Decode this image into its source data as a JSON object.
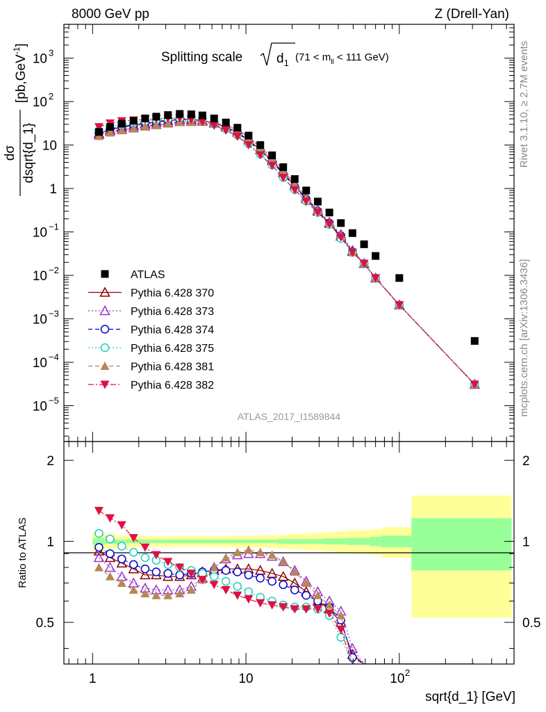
{
  "header": {
    "left": "8000 GeV pp",
    "right": "Z (Drell-Yan)"
  },
  "side_text": {
    "rivet": "Rivet 3.1.10, ≥ 2.7M events",
    "mcplots": "mcplots.cern.ch [arXiv:1306.3436]"
  },
  "colors": {
    "ATLAS": "#000000",
    "p370": "#8b0000",
    "p373": "#9933cc",
    "p374": "#0000cc",
    "p375": "#22ccbb",
    "p381": "#b8865a",
    "p382": "#dd1144",
    "band_stat": "#99ff99",
    "band_total": "#ffff99"
  },
  "chart_data": [
    {
      "type": "scatter",
      "panel": "main",
      "title_prefix": "Splitting scale",
      "title_sym": "d",
      "title_sub": "1",
      "title_range": "(71 < m",
      "title_range_sub": "ll",
      "title_range_end": " < 111 GeV)",
      "ylabel_num": "dσ",
      "ylabel_den": "dsqrt{d_1}",
      "ylabel_units": "[pb,GeV",
      "ylabel_units_sup": "-1",
      "ylabel_units_end": "]",
      "x_scale": "log",
      "y_scale": "log",
      "xlim": [
        0.65,
        560
      ],
      "ylim": [
        1.5e-06,
        6000
      ],
      "y_ticks": [
        {
          "v": 1e-05,
          "base": "10",
          "exp": "−5"
        },
        {
          "v": 0.0001,
          "base": "10",
          "exp": "−4"
        },
        {
          "v": 0.001,
          "base": "10",
          "exp": "−3"
        },
        {
          "v": 0.01,
          "base": "10",
          "exp": "−2"
        },
        {
          "v": 0.1,
          "base": "10",
          "exp": "−1"
        },
        {
          "v": 1,
          "base": "1",
          "exp": ""
        },
        {
          "v": 10,
          "base": "10",
          "exp": ""
        },
        {
          "v": 100,
          "base": "10",
          "exp": "2"
        },
        {
          "v": 1000,
          "base": "10",
          "exp": "3"
        }
      ],
      "legend_position": "left",
      "watermark": "ATLAS_2017_I1589844",
      "x": [
        1.1,
        1.3,
        1.55,
        1.85,
        2.2,
        2.6,
        3.1,
        3.7,
        4.4,
        5.2,
        6.2,
        7.4,
        8.8,
        10.4,
        12.4,
        14.8,
        17.5,
        20.8,
        24.7,
        29.4,
        35.0,
        41.6,
        49.5,
        58.9,
        70.0,
        100.0,
        310.0
      ],
      "series": [
        {
          "name": "ATLAS",
          "key": "ATLAS",
          "marker": "square-filled",
          "line": "none",
          "values": [
            20,
            26,
            31,
            36,
            41,
            45,
            49,
            52,
            51,
            48,
            41,
            33,
            25,
            16.5,
            10,
            5.8,
            3.1,
            1.65,
            0.9,
            0.5,
            0.28,
            0.16,
            0.094,
            0.052,
            0.028,
            0.0087,
            0.00031
          ]
        }
      ]
    },
    {
      "type": "line",
      "panel": "ratio",
      "ylabel": "Ratio to ATLAS",
      "x_scale": "log",
      "xlabel": "sqrt{d_1} [GeV]",
      "xlim": [
        0.65,
        560
      ],
      "ylim": [
        0.35,
        2.35
      ],
      "y_ticks": [
        0.5,
        1,
        2
      ],
      "x_ticks": [
        {
          "v": 1,
          "base": "1",
          "exp": ""
        },
        {
          "v": 10,
          "base": "10",
          "exp": ""
        },
        {
          "v": 100,
          "base": "10",
          "exp": "2"
        }
      ],
      "x": [
        1.1,
        1.3,
        1.55,
        1.85,
        2.2,
        2.6,
        3.1,
        3.7,
        4.4,
        5.2,
        6.2,
        7.4,
        8.8,
        10.4,
        12.4,
        14.8,
        17.5,
        20.8,
        24.7,
        29.4,
        35.0,
        41.6,
        49.5,
        58.9,
        70.0,
        100.0,
        310.0
      ],
      "band_edges": [
        1.0,
        1.2,
        1.42,
        1.7,
        2.03,
        2.4,
        2.85,
        3.4,
        4.05,
        4.8,
        5.7,
        6.8,
        8.1,
        9.6,
        11.4,
        13.6,
        16.1,
        19.1,
        22.7,
        27.0,
        32.1,
        38.3,
        45.5,
        54.2,
        64.4,
        76.5,
        120,
        540
      ],
      "band_stat": [
        0.03,
        0.02,
        0.015,
        0.015,
        0.015,
        0.015,
        0.015,
        0.015,
        0.015,
        0.015,
        0.015,
        0.015,
        0.015,
        0.015,
        0.015,
        0.015,
        0.02,
        0.02,
        0.02,
        0.02,
        0.025,
        0.025,
        0.03,
        0.03,
        0.04,
        0.05,
        0.22
      ],
      "band_total": [
        0.08,
        0.06,
        0.05,
        0.05,
        0.045,
        0.045,
        0.045,
        0.045,
        0.045,
        0.045,
        0.045,
        0.045,
        0.05,
        0.05,
        0.05,
        0.055,
        0.06,
        0.065,
        0.07,
        0.075,
        0.08,
        0.09,
        0.1,
        0.1,
        0.11,
        0.13,
        0.48
      ],
      "series": [
        {
          "name": "Pythia 6.428 370",
          "key": "p370",
          "marker": "triangle-up-open",
          "line": "solid",
          "values": [
            0.92,
            0.87,
            0.83,
            0.79,
            0.75,
            0.75,
            0.74,
            0.74,
            0.75,
            0.77,
            0.78,
            0.79,
            0.79,
            0.79,
            0.78,
            0.76,
            0.74,
            0.7,
            0.65,
            0.6,
            0.56,
            0.5,
            0.38,
            0.36,
            0.36,
            0.36,
            0.36
          ]
        },
        {
          "name": "Pythia 6.428 373",
          "key": "p373",
          "marker": "triangle-up-open",
          "line": "dotted",
          "values": [
            0.87,
            0.8,
            0.74,
            0.7,
            0.67,
            0.66,
            0.66,
            0.66,
            0.68,
            0.73,
            0.8,
            0.86,
            0.89,
            0.9,
            0.9,
            0.88,
            0.84,
            0.78,
            0.71,
            0.65,
            0.6,
            0.55,
            0.4,
            0.36,
            0.36,
            0.36,
            0.36
          ]
        },
        {
          "name": "Pythia 6.428 374",
          "key": "p374",
          "marker": "circle-open",
          "line": "dashed",
          "values": [
            0.95,
            0.9,
            0.86,
            0.82,
            0.79,
            0.77,
            0.76,
            0.75,
            0.76,
            0.77,
            0.78,
            0.78,
            0.77,
            0.75,
            0.73,
            0.71,
            0.69,
            0.66,
            0.63,
            0.6,
            0.57,
            0.51,
            0.37,
            0.36,
            0.36,
            0.36,
            0.36
          ]
        },
        {
          "name": "Pythia 6.428 375",
          "key": "p375",
          "marker": "circle-open",
          "line": "dotted",
          "values": [
            1.07,
            1.02,
            0.96,
            0.91,
            0.87,
            0.85,
            0.82,
            0.8,
            0.78,
            0.76,
            0.74,
            0.71,
            0.68,
            0.65,
            0.62,
            0.6,
            0.58,
            0.57,
            0.57,
            0.56,
            0.53,
            0.44,
            0.36,
            0.36,
            0.36,
            0.36,
            0.36
          ]
        },
        {
          "name": "Pythia 6.428 381",
          "key": "p381",
          "marker": "triangle-up-filled",
          "line": "dashed",
          "values": [
            0.8,
            0.74,
            0.7,
            0.66,
            0.64,
            0.63,
            0.63,
            0.64,
            0.66,
            0.72,
            0.8,
            0.87,
            0.91,
            0.93,
            0.91,
            0.89,
            0.84,
            0.77,
            0.7,
            0.63,
            0.58,
            0.53,
            0.36,
            0.36,
            0.36,
            0.36,
            0.36
          ]
        },
        {
          "name": "Pythia 6.428 382",
          "key": "p382",
          "marker": "triangle-down-filled",
          "line": "dashdot",
          "values": [
            1.3,
            1.22,
            1.15,
            1.03,
            0.95,
            0.89,
            0.84,
            0.8,
            0.76,
            0.72,
            0.69,
            0.66,
            0.63,
            0.61,
            0.59,
            0.58,
            0.57,
            0.56,
            0.56,
            0.56,
            0.54,
            0.47,
            0.36,
            0.36,
            0.36,
            0.36,
            0.36
          ]
        }
      ]
    }
  ]
}
